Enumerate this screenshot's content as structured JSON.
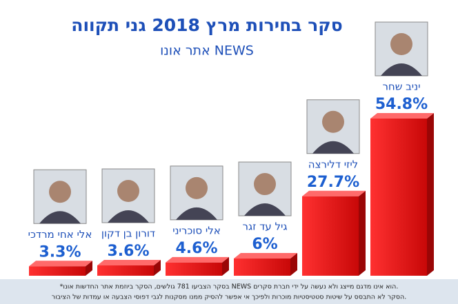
{
  "chart_data": {
    "type": "bar3d",
    "title": "סקר בחירות מרץ 2018 גני תקווה",
    "subtitle": "אתר אונו NEWS",
    "categories": [
      "אלי אחי מרדכי",
      "דורון בן דקון",
      "אלי סוכריני",
      "גיל עד זגר",
      "ליזי דלירצה",
      "יניב שחר"
    ],
    "values": [
      3.3,
      3.6,
      4.6,
      6,
      27.7,
      54.8
    ],
    "value_labels": [
      "3.3%",
      "3.6%",
      "4.6%",
      "6%",
      "27.7%",
      "54.8%"
    ],
    "color": "#e01010",
    "footnote": [
      "*בסקר הצביעו 781 גולשים, הסקר ביוזמת אתר החדשות אונו NEWS הוא אינו מדגם מייצג ולא נעשה על ידי חברת סקרים.",
      "הסקר לא התבסס על שיטות סטטיסטיות מוכרות ולפיכך אי אפשר להסיק ממנו מסקנות לגבי דפוסי הצבעה או עמדות של הציבור."
    ]
  }
}
